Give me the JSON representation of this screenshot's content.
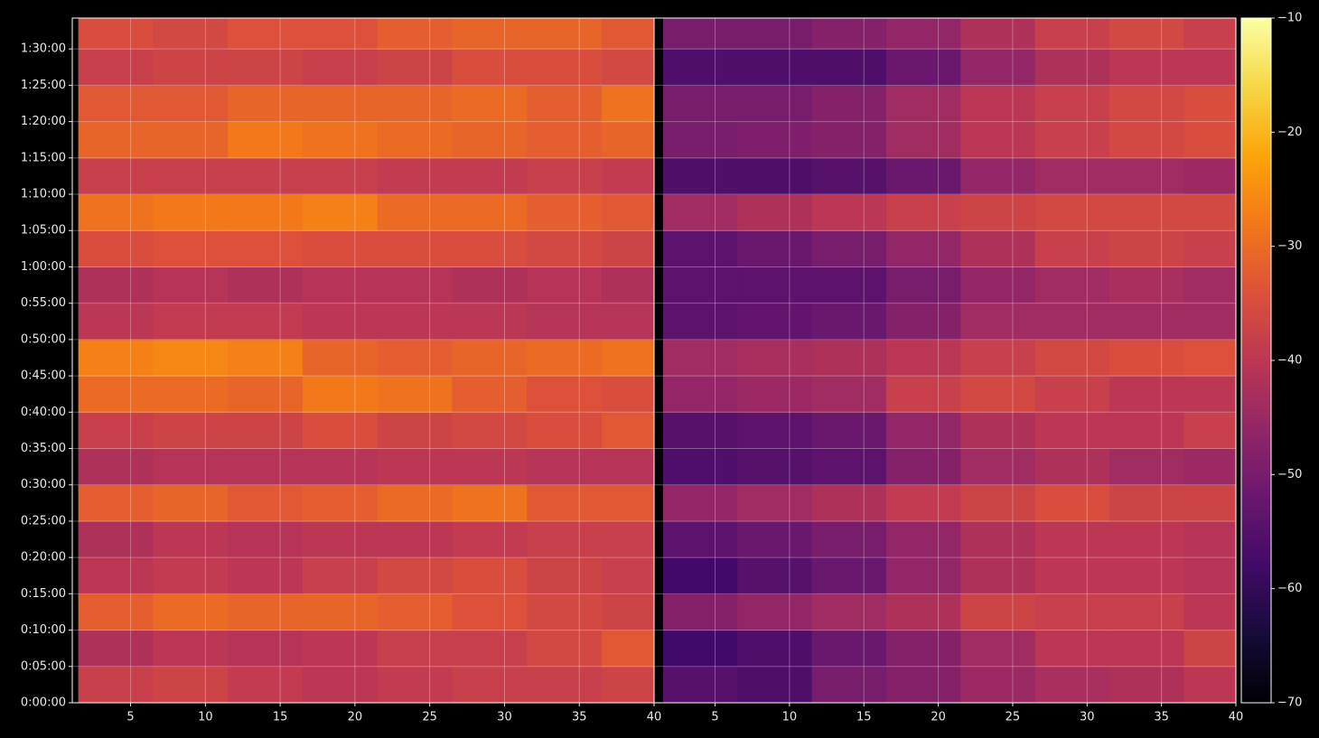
{
  "chart_data": [
    {
      "type": "heatmap",
      "grid": true,
      "x": [
        4,
        9,
        14,
        19,
        24,
        29,
        34,
        39
      ],
      "y": [
        150,
        450,
        750,
        1050,
        1350,
        1650,
        1950,
        2250,
        2550,
        2850,
        3150,
        3450,
        3750,
        4050,
        4350,
        4650,
        4950,
        5250,
        5550
      ],
      "xlim": [
        1.1,
        40
      ],
      "ylim": [
        0,
        5655
      ],
      "xticks": [
        5,
        10,
        15,
        20,
        25,
        30,
        35,
        40
      ],
      "yticks": [
        {
          "value": 0,
          "label": "0:00:00"
        },
        {
          "value": 300,
          "label": "0:05:00"
        },
        {
          "value": 600,
          "label": "0:10:00"
        },
        {
          "value": 900,
          "label": "0:15:00"
        },
        {
          "value": 1200,
          "label": "0:20:00"
        },
        {
          "value": 1500,
          "label": "0:25:00"
        },
        {
          "value": 1800,
          "label": "0:30:00"
        },
        {
          "value": 2100,
          "label": "0:35:00"
        },
        {
          "value": 2400,
          "label": "0:40:00"
        },
        {
          "value": 2700,
          "label": "0:45:00"
        },
        {
          "value": 3000,
          "label": "0:50:00"
        },
        {
          "value": 3300,
          "label": "0:55:00"
        },
        {
          "value": 3600,
          "label": "1:00:00"
        },
        {
          "value": 3900,
          "label": "1:05:00"
        },
        {
          "value": 4200,
          "label": "1:10:00"
        },
        {
          "value": 4500,
          "label": "1:15:00"
        },
        {
          "value": 4800,
          "label": "1:20:00"
        },
        {
          "value": 5100,
          "label": "1:25:00"
        },
        {
          "value": 5400,
          "label": "1:30:00"
        }
      ],
      "values": [
        [
          -38,
          -37,
          -39,
          -40,
          -39,
          -38,
          -38,
          -37
        ],
        [
          -42,
          -40,
          -41,
          -40,
          -38,
          -38,
          -36,
          -33
        ],
        [
          -32,
          -30,
          -31,
          -31,
          -32,
          -34,
          -36,
          -37
        ],
        [
          -40,
          -39,
          -40,
          -38,
          -36,
          -35,
          -37,
          -38
        ],
        [
          -42,
          -40,
          -41,
          -40,
          -40,
          -39,
          -38,
          -38
        ],
        [
          -32,
          -31,
          -33,
          -32,
          -30,
          -29,
          -33,
          -33
        ],
        [
          -42,
          -41,
          -41,
          -41,
          -40,
          -40,
          -41,
          -41
        ],
        [
          -38,
          -37,
          -37,
          -35,
          -37,
          -36,
          -35,
          -33
        ],
        [
          -30,
          -30,
          -31,
          -28,
          -29,
          -32,
          -34,
          -35
        ],
        [
          -27,
          -26,
          -27,
          -31,
          -32,
          -31,
          -30,
          -29
        ],
        [
          -40,
          -39,
          -39,
          -40,
          -40,
          -40,
          -41,
          -41
        ],
        [
          -42,
          -41,
          -42,
          -41,
          -41,
          -42,
          -41,
          -42
        ],
        [
          -35,
          -34,
          -34,
          -35,
          -35,
          -35,
          -36,
          -37
        ],
        [
          -29,
          -28,
          -28,
          -27,
          -30,
          -30,
          -32,
          -33
        ],
        [
          -38,
          -38,
          -38,
          -38,
          -39,
          -39,
          -38,
          -39
        ],
        [
          -31,
          -31,
          -28,
          -29,
          -30,
          -31,
          -32,
          -31
        ],
        [
          -33,
          -33,
          -31,
          -31,
          -31,
          -30,
          -32,
          -29
        ],
        [
          -38,
          -37,
          -37,
          -38,
          -37,
          -35,
          -35,
          -36
        ],
        [
          -35,
          -36,
          -34,
          -34,
          -32,
          -31,
          -31,
          -33
        ]
      ]
    },
    {
      "type": "heatmap",
      "grid": true,
      "x": [
        4,
        9,
        14,
        19,
        24,
        29,
        34,
        39
      ],
      "y": [
        150,
        450,
        750,
        1050,
        1350,
        1650,
        1950,
        2250,
        2550,
        2850,
        3150,
        3450,
        3750,
        4050,
        4350,
        4650,
        4950,
        5250,
        5550
      ],
      "xlim": [
        0.9,
        40
      ],
      "ylim": [
        0,
        5655
      ],
      "xticks": [
        5,
        10,
        15,
        20,
        25,
        30,
        35,
        40
      ],
      "values": [
        [
          -55,
          -56,
          -50,
          -48,
          -45,
          -43,
          -42,
          -40
        ],
        [
          -58,
          -56,
          -52,
          -48,
          -44,
          -40,
          -40,
          -37
        ],
        [
          -48,
          -46,
          -44,
          -42,
          -37,
          -38,
          -38,
          -40
        ],
        [
          -58,
          -55,
          -52,
          -46,
          -42,
          -40,
          -40,
          -41
        ],
        [
          -54,
          -52,
          -50,
          -46,
          -42,
          -40,
          -40,
          -41
        ],
        [
          -46,
          -44,
          -42,
          -39,
          -37,
          -35,
          -37,
          -37
        ],
        [
          -56,
          -55,
          -54,
          -48,
          -44,
          -42,
          -44,
          -45
        ],
        [
          -55,
          -54,
          -52,
          -46,
          -42,
          -40,
          -40,
          -38
        ],
        [
          -46,
          -45,
          -44,
          -38,
          -36,
          -38,
          -40,
          -40
        ],
        [
          -44,
          -43,
          -42,
          -40,
          -38,
          -36,
          -35,
          -34
        ],
        [
          -54,
          -53,
          -52,
          -48,
          -44,
          -44,
          -44,
          -44
        ],
        [
          -54,
          -54,
          -54,
          -50,
          -46,
          -44,
          -43,
          -44
        ],
        [
          -54,
          -52,
          -50,
          -46,
          -42,
          -38,
          -37,
          -38
        ],
        [
          -44,
          -42,
          -40,
          -38,
          -37,
          -36,
          -36,
          -36
        ],
        [
          -56,
          -56,
          -55,
          -52,
          -46,
          -44,
          -44,
          -45
        ],
        [
          -50,
          -49,
          -48,
          -44,
          -40,
          -38,
          -36,
          -35
        ],
        [
          -50,
          -50,
          -48,
          -44,
          -40,
          -38,
          -36,
          -35
        ],
        [
          -56,
          -56,
          -56,
          -52,
          -46,
          -42,
          -40,
          -40
        ],
        [
          -50,
          -50,
          -48,
          -46,
          -42,
          -38,
          -36,
          -38
        ]
      ]
    }
  ],
  "colorbar": {
    "zlim": [
      -70,
      -10
    ],
    "zticks": [
      {
        "value": -70,
        "label": "−70"
      },
      {
        "value": -60,
        "label": "−60"
      },
      {
        "value": -50,
        "label": "−50"
      },
      {
        "value": -40,
        "label": "−40"
      },
      {
        "value": -30,
        "label": "−30"
      },
      {
        "value": -20,
        "label": "−20"
      },
      {
        "value": -10,
        "label": "−10"
      }
    ],
    "colors": [
      "#000004",
      "#160b39",
      "#420a68",
      "#6a176e",
      "#932667",
      "#bc3754",
      "#dd513a",
      "#f37819",
      "#fca50a",
      "#f6d746",
      "#fcffa4"
    ]
  }
}
